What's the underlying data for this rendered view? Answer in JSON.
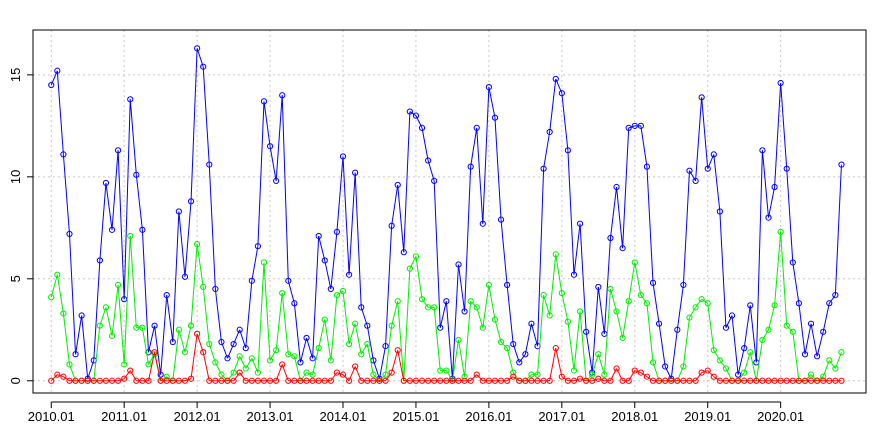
{
  "chart_data": {
    "type": "line",
    "title": "",
    "xlabel": "",
    "ylabel": "",
    "x_range": [
      2010.0,
      2020.9167
    ],
    "ylim": [
      0,
      16.5
    ],
    "grid": true,
    "x_ticks": [
      {
        "label": "2010.01",
        "value": 2010.0
      },
      {
        "label": "2011.01",
        "value": 2011.0
      },
      {
        "label": "2012.01",
        "value": 2012.0
      },
      {
        "label": "2013.01",
        "value": 2013.0
      },
      {
        "label": "2014.01",
        "value": 2014.0
      },
      {
        "label": "2015.01",
        "value": 2015.0
      },
      {
        "label": "2016.01",
        "value": 2016.0
      },
      {
        "label": "2017.01",
        "value": 2017.0
      },
      {
        "label": "2018.01",
        "value": 2018.0
      },
      {
        "label": "2019.01",
        "value": 2019.0
      },
      {
        "label": "2020.01",
        "value": 2020.0
      }
    ],
    "y_ticks": [
      {
        "label": "0",
        "value": 0
      },
      {
        "label": "5",
        "value": 5
      },
      {
        "label": "10",
        "value": 10
      },
      {
        "label": "15",
        "value": 15
      }
    ],
    "series": [
      {
        "color": "#0000ff",
        "values": [
          14.5,
          15.2,
          11.1,
          7.2,
          1.3,
          3.2,
          0.1,
          1.0,
          5.9,
          9.7,
          7.4,
          11.3,
          4.0,
          13.8,
          10.1,
          7.4,
          1.4,
          2.7,
          0.3,
          4.2,
          1.9,
          8.3,
          5.1,
          8.8,
          16.3,
          15.4,
          10.6,
          4.5,
          1.9,
          1.1,
          1.8,
          2.5,
          1.6,
          4.9,
          6.6,
          13.7,
          11.5,
          9.8,
          14.0,
          4.9,
          3.8,
          0.9,
          2.1,
          1.1,
          7.1,
          5.9,
          4.5,
          7.3,
          11.0,
          5.2,
          10.2,
          3.6,
          2.7,
          1.0,
          0.1,
          1.7,
          7.6,
          9.6,
          6.3,
          13.2,
          13.0,
          12.4,
          10.8,
          9.8,
          2.6,
          3.9,
          0.1,
          5.7,
          3.4,
          10.5,
          12.4,
          7.7,
          14.4,
          12.9,
          7.9,
          4.7,
          1.8,
          0.9,
          1.3,
          2.8,
          1.7,
          10.4,
          12.2,
          14.8,
          14.1,
          11.3,
          5.2,
          7.7,
          2.4,
          0.4,
          4.6,
          2.3,
          7.0,
          9.5,
          6.5,
          12.4,
          12.5,
          12.5,
          10.5,
          4.8,
          2.8,
          0.7,
          0.1,
          2.5,
          4.7,
          10.3,
          9.8,
          13.9,
          10.4,
          11.1,
          8.3,
          2.6,
          3.2,
          0.3,
          1.6,
          3.7,
          0.9,
          11.3,
          8.0,
          9.5,
          14.6,
          10.4,
          5.8,
          3.8,
          1.3,
          2.8,
          1.2,
          2.4,
          3.8,
          4.2,
          10.6
        ]
      },
      {
        "color": "#00ee00",
        "values": [
          4.1,
          5.2,
          3.3,
          0.8,
          0.0,
          0.0,
          0.0,
          0.0,
          2.7,
          3.6,
          2.2,
          4.7,
          0.8,
          7.1,
          2.6,
          2.6,
          0.8,
          1.3,
          0.0,
          0.2,
          0.0,
          2.5,
          1.4,
          2.7,
          6.7,
          4.6,
          1.8,
          0.9,
          0.3,
          0.0,
          0.4,
          1.2,
          0.6,
          1.1,
          0.4,
          5.8,
          1.0,
          1.5,
          4.3,
          1.3,
          1.2,
          0.0,
          0.4,
          0.3,
          1.6,
          3.0,
          1.0,
          4.2,
          4.4,
          1.8,
          2.8,
          1.3,
          1.8,
          0.3,
          0.0,
          0.3,
          2.7,
          3.9,
          0.0,
          5.5,
          6.1,
          4.0,
          3.6,
          3.6,
          0.5,
          0.5,
          0.0,
          2.0,
          0.2,
          3.9,
          3.6,
          2.6,
          4.7,
          3.0,
          1.9,
          1.6,
          0.4,
          0.0,
          0.0,
          0.3,
          0.3,
          4.2,
          3.2,
          6.2,
          4.3,
          2.9,
          0.5,
          3.4,
          0.0,
          0.3,
          1.3,
          0.3,
          4.5,
          3.4,
          2.1,
          3.9,
          5.8,
          4.2,
          3.8,
          0.9,
          0.0,
          0.0,
          0.0,
          0.0,
          0.7,
          3.1,
          3.6,
          4.0,
          3.8,
          1.5,
          1.0,
          0.6,
          0.0,
          0.0,
          0.4,
          1.4,
          0.0,
          2.0,
          2.5,
          3.7,
          7.3,
          2.7,
          2.4,
          0.0,
          0.0,
          0.3,
          0.0,
          0.2,
          1.0,
          0.6,
          1.4
        ]
      },
      {
        "color": "#ff0000",
        "values": [
          0.0,
          0.3,
          0.2,
          0.0,
          0.0,
          0.0,
          0.0,
          0.0,
          0.0,
          0.0,
          0.0,
          0.0,
          0.1,
          0.5,
          0.0,
          0.0,
          0.0,
          1.4,
          0.0,
          0.0,
          0.0,
          0.0,
          0.0,
          0.1,
          2.3,
          1.4,
          0.0,
          0.0,
          0.0,
          0.0,
          0.0,
          0.4,
          0.0,
          0.0,
          0.0,
          0.0,
          0.0,
          0.0,
          0.8,
          0.0,
          0.0,
          0.0,
          0.0,
          0.0,
          0.0,
          0.0,
          0.0,
          0.4,
          0.3,
          0.0,
          0.7,
          0.0,
          0.0,
          0.0,
          0.0,
          0.0,
          0.4,
          1.5,
          0.0,
          0.0,
          0.0,
          0.0,
          0.0,
          0.0,
          0.0,
          0.0,
          0.0,
          0.0,
          0.0,
          0.0,
          0.3,
          0.0,
          0.0,
          0.0,
          0.0,
          0.0,
          0.2,
          0.0,
          0.0,
          0.0,
          0.0,
          0.0,
          0.0,
          1.6,
          0.2,
          0.0,
          0.0,
          0.1,
          0.0,
          0.0,
          0.1,
          0.0,
          0.0,
          0.6,
          0.0,
          0.0,
          0.5,
          0.4,
          0.2,
          0.0,
          0.0,
          0.0,
          0.0,
          0.0,
          0.0,
          0.0,
          0.0,
          0.4,
          0.5,
          0.2,
          0.0,
          0.0,
          0.0,
          0.0,
          0.0,
          0.0,
          0.0,
          0.0,
          0.0,
          0.0,
          0.0,
          0.0,
          0.0,
          0.0,
          0.0,
          0.0,
          0.0,
          0.0,
          0.0,
          0.0,
          0.0
        ]
      }
    ]
  }
}
